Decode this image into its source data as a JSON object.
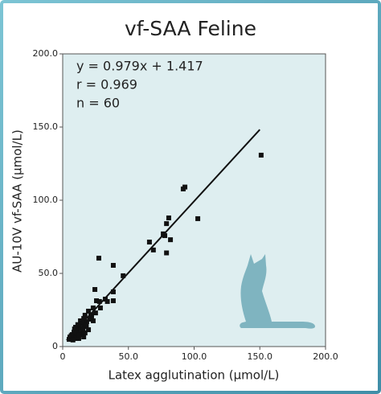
{
  "chart_data": {
    "type": "scatter",
    "title": "vf-SAA Feline",
    "x_label": "Latex agglutination (μmol/L)",
    "y_label": "AU-10V vf-SAA (μmol/L)",
    "annotations": [
      "y = 0.979x + 1.417",
      "r = 0.969",
      "n = 60"
    ],
    "regression": {
      "slope": 0.979,
      "intercept": 1.417,
      "x": [
        3,
        150
      ]
    },
    "color": "#111111",
    "line_color": "#111111",
    "background": "#deeef0",
    "xlim": [
      0,
      200
    ],
    "ylim": [
      0,
      200
    ],
    "xticks": [
      0,
      {
        "value": 50,
        "label": "50.0"
      },
      {
        "value": 100,
        "label": "100.0"
      },
      {
        "value": 150,
        "label": "150.0"
      },
      {
        "value": 200,
        "label": "200.0"
      }
    ],
    "yticks": [
      0,
      {
        "value": 50,
        "label": "50.0"
      },
      {
        "value": 100,
        "label": "100.0"
      },
      {
        "value": 150,
        "label": "150.0"
      },
      {
        "value": 200,
        "label": "200.0"
      }
    ],
    "x": [
      151,
      93,
      91.7,
      102.8,
      80.7,
      79,
      76.5,
      77.7,
      82,
      66,
      69,
      79,
      27.5,
      38.5,
      46,
      24.5,
      38.5,
      38.5,
      32.4,
      28,
      25.7,
      28.7,
      23.2,
      25,
      19.6,
      17,
      16,
      13.5,
      20.8,
      14.7,
      12.2,
      9.8,
      16,
      11,
      8.6,
      7.3,
      6.1,
      4.9,
      10.4,
      13.5,
      17,
      16,
      12.2,
      8.6,
      19.6,
      23.2,
      21.4,
      18.3,
      34,
      6.5,
      9,
      11.5,
      14,
      5.5,
      7.8,
      10,
      12.8,
      15.5,
      18,
      22
    ],
    "values": [
      130.8,
      109,
      107.7,
      87.4,
      87.9,
      84,
      77,
      75.8,
      73,
      71.4,
      66,
      64,
      60.4,
      55.5,
      48.4,
      39,
      37.4,
      31.3,
      32.4,
      30.8,
      31.3,
      26.4,
      26.4,
      23,
      24.2,
      21.4,
      19.2,
      17.6,
      18.7,
      15.9,
      14.8,
      13.2,
      13.7,
      11,
      9.9,
      8.2,
      6,
      4.9,
      7.1,
      9.3,
      9.3,
      6.6,
      5.5,
      5.5,
      11.5,
      17.6,
      21.4,
      17,
      30.8,
      7.5,
      12,
      15,
      12.5,
      6.5,
      4.5,
      9.5,
      8,
      12,
      14.5,
      20
    ]
  }
}
